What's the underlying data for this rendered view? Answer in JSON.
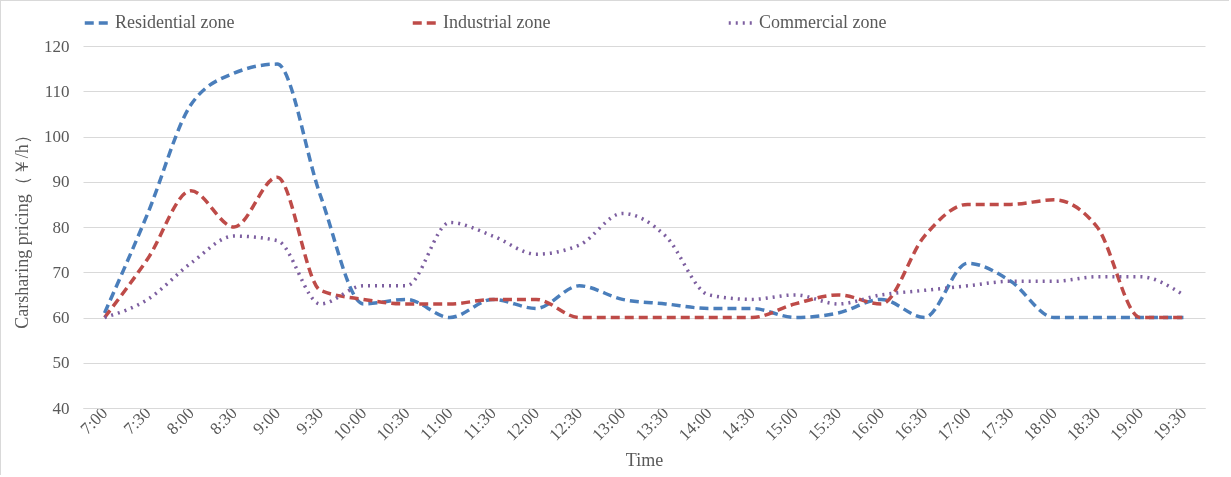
{
  "chart_data": {
    "type": "line",
    "xlabel": "Time",
    "ylabel": "Carsharing pricing（￥/h）",
    "categories": [
      "7:00",
      "7:30",
      "8:00",
      "8:30",
      "9:00",
      "9:30",
      "10:00",
      "10:30",
      "11:00",
      "11:30",
      "12:00",
      "12:30",
      "13:00",
      "13:30",
      "14:00",
      "14:30",
      "15:00",
      "15:30",
      "16:00",
      "16:30",
      "17:00",
      "17:30",
      "18:00",
      "18:30",
      "19:00",
      "19:30"
    ],
    "series": [
      {
        "name": "Residential zone",
        "color": "#4a7ebb",
        "line_style": "dashed",
        "values": [
          61,
          83,
          107,
          114,
          116,
          87,
          63,
          64,
          60,
          64,
          62,
          67,
          64,
          63,
          62,
          62,
          60,
          61,
          64,
          60,
          72,
          68,
          60,
          60,
          60,
          60
        ]
      },
      {
        "name": "Industrial zone",
        "color": "#be4b48",
        "line_style": "dashed",
        "values": [
          60,
          73,
          88,
          80,
          91,
          66,
          64,
          63,
          63,
          64,
          64,
          60,
          60,
          60,
          60,
          60,
          63,
          65,
          63,
          78,
          85,
          85,
          86,
          80,
          60,
          60
        ]
      },
      {
        "name": "Commercial zone",
        "color": "#7d5fa0",
        "line_style": "dotted",
        "values": [
          60,
          64,
          72,
          78,
          77,
          63,
          67,
          67,
          81,
          78,
          74,
          76,
          83,
          78,
          65,
          64,
          65,
          63,
          65,
          66,
          67,
          68,
          68,
          69,
          69,
          65
        ]
      }
    ],
    "ylim": [
      40,
      120
    ],
    "yticks": [
      40,
      50,
      60,
      70,
      80,
      90,
      100,
      110,
      120
    ],
    "grid": "y",
    "legend": "top",
    "marker": "none"
  }
}
